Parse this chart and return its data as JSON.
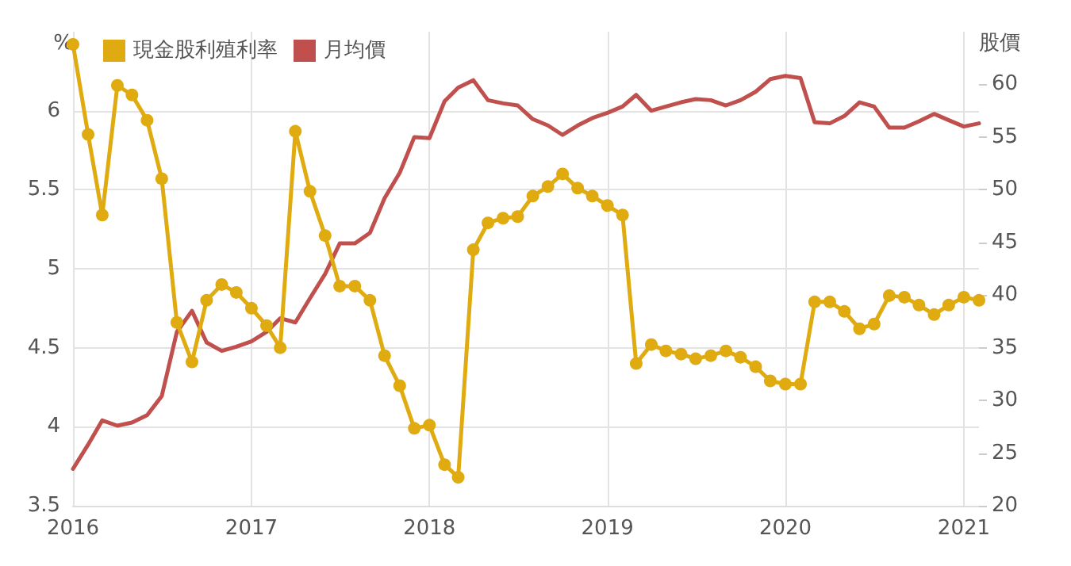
{
  "chart_data": {
    "type": "line",
    "ylabel": "%",
    "y2label": "股價",
    "x": [
      "2016-01",
      "2016-02",
      "2016-03",
      "2016-04",
      "2016-05",
      "2016-06",
      "2016-07",
      "2016-08",
      "2016-09",
      "2016-10",
      "2016-11",
      "2016-12",
      "2017-01",
      "2017-02",
      "2017-03",
      "2017-04",
      "2017-05",
      "2017-06",
      "2017-07",
      "2017-08",
      "2017-09",
      "2017-10",
      "2017-11",
      "2017-12",
      "2018-01",
      "2018-02",
      "2018-03",
      "2018-04",
      "2018-05",
      "2018-06",
      "2018-07",
      "2018-08",
      "2018-09",
      "2018-10",
      "2018-11",
      "2018-12",
      "2019-01",
      "2019-02",
      "2019-03",
      "2019-04",
      "2019-05",
      "2019-06",
      "2019-07",
      "2019-08",
      "2019-09",
      "2019-10",
      "2019-11",
      "2019-12",
      "2020-01",
      "2020-02",
      "2020-03",
      "2020-04",
      "2020-05",
      "2020-06",
      "2020-07",
      "2020-08",
      "2020-09",
      "2020-10",
      "2020-11",
      "2020-12",
      "2021-01",
      "2021-02"
    ],
    "series": [
      {
        "name": "現金股利殖利率",
        "color": "#e0ab10",
        "values": [
          6.42,
          5.85,
          5.34,
          6.16,
          6.1,
          5.94,
          5.57,
          4.66,
          4.41,
          4.8,
          4.9,
          4.85,
          4.75,
          4.64,
          4.5,
          5.87,
          5.49,
          5.21,
          4.89,
          4.89,
          4.8,
          4.45,
          4.26,
          3.99,
          4.01,
          3.76,
          3.68,
          5.12,
          5.29,
          5.32,
          5.33,
          5.46,
          5.52,
          5.6,
          5.51,
          5.46,
          5.4,
          5.34,
          4.4,
          4.52,
          4.48,
          4.46,
          4.43,
          4.45,
          4.48,
          4.44,
          4.38,
          4.29,
          4.27,
          4.27,
          4.79,
          4.79,
          4.73,
          4.62,
          4.65,
          4.83,
          4.82,
          4.77,
          4.71,
          4.77,
          4.82,
          4.8
        ]
      },
      {
        "name": "月均價",
        "color": "#c0504d",
        "axis": "y2",
        "marker": "none",
        "values": [
          23.5,
          25.8,
          28.1,
          27.6,
          27.9,
          28.6,
          30.4,
          36.5,
          38.5,
          35.5,
          34.7,
          35.1,
          35.6,
          36.5,
          37.8,
          37.4,
          39.7,
          42,
          44.9,
          44.9,
          45.9,
          49.2,
          51.6,
          55,
          54.9,
          58.4,
          59.7,
          60.4,
          58.5,
          58.2,
          58,
          56.7,
          56.1,
          55.2,
          56.1,
          56.8,
          57.3,
          57.9,
          59,
          57.5,
          57.9,
          58.3,
          58.6,
          58.5,
          58,
          58.5,
          59.3,
          60.5,
          60.8,
          60.6,
          56.4,
          56.3,
          57,
          58.3,
          57.9,
          55.9,
          55.9,
          56.5,
          57.2,
          56.6,
          56,
          56.3
        ]
      }
    ],
    "xlim": [
      "2016-01",
      "2021-02"
    ],
    "xticks": [
      {
        "value": "2016",
        "label": "2016"
      },
      {
        "value": "2017",
        "label": "2017"
      },
      {
        "value": "2018",
        "label": "2018"
      },
      {
        "value": "2019",
        "label": "2019"
      },
      {
        "value": "2020",
        "label": "2020"
      },
      {
        "value": "2021",
        "label": "2021"
      }
    ],
    "ylim": [
      3.5,
      6.5
    ],
    "yticks": [
      3.5,
      4,
      4.5,
      5,
      5.5,
      6
    ],
    "y2lim": [
      20,
      65
    ],
    "y2ticks": [
      20,
      25,
      30,
      35,
      40,
      45,
      50,
      55,
      60
    ],
    "grid": true,
    "legend": "top left",
    "marker": "circle",
    "line_style": "solid"
  }
}
